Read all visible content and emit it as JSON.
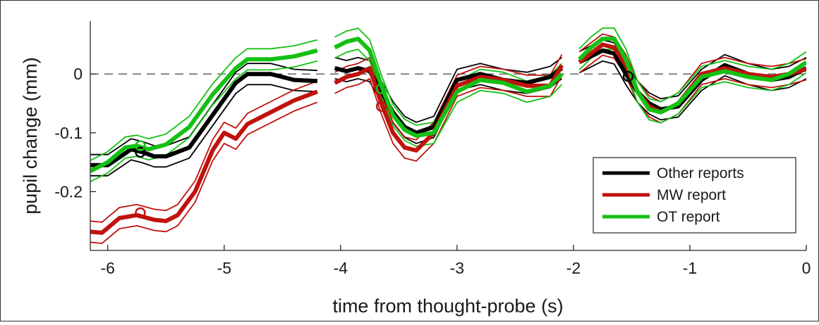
{
  "chart_data": {
    "type": "line",
    "title": "",
    "xlabel": "time from thought-probe (s)",
    "ylabel": "pupil change (mm)",
    "xlim": [
      -6.15,
      0
    ],
    "ylim": [
      -0.3,
      0.09
    ],
    "xticks": [
      -6,
      -5,
      -4,
      -3,
      -2,
      -1,
      0
    ],
    "xtick_labels": [
      "-6",
      "-5",
      "-4",
      "-3",
      "-2",
      "-1",
      "0"
    ],
    "yticks": [
      0,
      -0.1,
      -0.2
    ],
    "ytick_labels": [
      "0",
      "-0.1",
      "-0.2"
    ],
    "grid": false,
    "reference_line": {
      "y": 0,
      "style": "dashed"
    },
    "legend": {
      "placement": "lower-right"
    },
    "series": [
      {
        "name": "Other reports",
        "color": "#000000",
        "segments": [
          {
            "x": [
              -6.15,
              -6.0,
              -5.85,
              -5.8,
              -5.7,
              -5.6,
              -5.5,
              -5.3,
              -5.1,
              -4.9,
              -4.8,
              -4.6,
              -4.4,
              -4.2
            ],
            "y": [
              -0.155,
              -0.155,
              -0.135,
              -0.128,
              -0.133,
              -0.14,
              -0.14,
              -0.125,
              -0.07,
              -0.015,
              0.0,
              0.0,
              -0.01,
              -0.012
            ]
          },
          {
            "x": [
              -4.05,
              -3.95,
              -3.85,
              -3.75,
              -3.65,
              -3.55,
              -3.45,
              -3.35,
              -3.2,
              -3.0,
              -2.8,
              -2.6,
              -2.4,
              -2.2,
              -2.1
            ],
            "y": [
              0.01,
              0.005,
              0.01,
              0.005,
              -0.03,
              -0.065,
              -0.09,
              -0.1,
              -0.09,
              -0.01,
              0.0,
              -0.01,
              -0.015,
              -0.005,
              0.01
            ]
          },
          {
            "x": [
              -1.95,
              -1.85,
              -1.75,
              -1.65,
              -1.55,
              -1.45,
              -1.35,
              -1.25,
              -1.1,
              -0.9,
              -0.7,
              -0.5,
              -0.3,
              -0.15,
              0.0
            ],
            "y": [
              0.02,
              0.03,
              0.04,
              0.035,
              0.0,
              -0.03,
              -0.05,
              -0.06,
              -0.055,
              -0.01,
              0.015,
              0.0,
              -0.01,
              -0.005,
              0.01
            ]
          }
        ],
        "markers": [
          {
            "x": -5.72,
            "y": -0.133
          },
          {
            "x": -1.53,
            "y": -0.004
          }
        ]
      },
      {
        "name": "MW report",
        "color": "#c0120e",
        "segments": [
          {
            "x": [
              -6.15,
              -6.05,
              -5.9,
              -5.75,
              -5.6,
              -5.5,
              -5.4,
              -5.25,
              -5.1,
              -5.0,
              -4.9,
              -4.8,
              -4.6,
              -4.4,
              -4.2
            ],
            "y": [
              -0.268,
              -0.27,
              -0.245,
              -0.24,
              -0.248,
              -0.25,
              -0.24,
              -0.2,
              -0.13,
              -0.1,
              -0.11,
              -0.085,
              -0.065,
              -0.045,
              -0.03
            ]
          },
          {
            "x": [
              -4.05,
              -3.95,
              -3.85,
              -3.75,
              -3.65,
              -3.55,
              -3.45,
              -3.35,
              -3.2,
              -3.0,
              -2.8,
              -2.6,
              -2.4,
              -2.2,
              -2.1
            ],
            "y": [
              -0.015,
              -0.005,
              0.0,
              0.01,
              -0.05,
              -0.1,
              -0.125,
              -0.13,
              -0.1,
              -0.02,
              -0.005,
              -0.01,
              -0.02,
              -0.02,
              0.015
            ]
          },
          {
            "x": [
              -1.95,
              -1.85,
              -1.75,
              -1.65,
              -1.55,
              -1.45,
              -1.35,
              -1.25,
              -1.1,
              -0.9,
              -0.7,
              -0.5,
              -0.3,
              -0.15,
              0.0
            ],
            "y": [
              0.02,
              0.035,
              0.05,
              0.045,
              0.015,
              -0.03,
              -0.055,
              -0.065,
              -0.05,
              0.0,
              0.01,
              0.0,
              -0.005,
              0.0,
              0.008
            ]
          }
        ],
        "markers": [
          {
            "x": -5.72,
            "y": -0.236
          },
          {
            "x": -3.65,
            "y": -0.055
          }
        ]
      },
      {
        "name": "OT report",
        "color": "#14c014",
        "segments": [
          {
            "x": [
              -6.15,
              -6.0,
              -5.85,
              -5.75,
              -5.65,
              -5.5,
              -5.3,
              -5.1,
              -4.9,
              -4.8,
              -4.6,
              -4.4,
              -4.2
            ],
            "y": [
              -0.165,
              -0.15,
              -0.125,
              -0.122,
              -0.128,
              -0.12,
              -0.09,
              -0.035,
              0.01,
              0.025,
              0.025,
              0.03,
              0.04
            ]
          },
          {
            "x": [
              -4.05,
              -3.95,
              -3.85,
              -3.75,
              -3.65,
              -3.55,
              -3.45,
              -3.35,
              -3.2,
              -3.0,
              -2.8,
              -2.6,
              -2.4,
              -2.2,
              -2.1
            ],
            "y": [
              0.045,
              0.055,
              0.06,
              0.04,
              -0.02,
              -0.07,
              -0.095,
              -0.105,
              -0.1,
              -0.03,
              -0.01,
              -0.015,
              -0.03,
              -0.02,
              0.0
            ]
          },
          {
            "x": [
              -1.95,
              -1.85,
              -1.75,
              -1.65,
              -1.55,
              -1.45,
              -1.35,
              -1.25,
              -1.1,
              -0.9,
              -0.7,
              -0.5,
              -0.3,
              -0.15,
              0.0
            ],
            "y": [
              0.025,
              0.045,
              0.06,
              0.06,
              0.025,
              -0.03,
              -0.06,
              -0.065,
              -0.05,
              -0.005,
              0.005,
              -0.005,
              -0.01,
              0.0,
              0.02
            ]
          }
        ],
        "markers": [
          {
            "x": -5.72,
            "y": -0.122
          },
          {
            "x": -3.65,
            "y": -0.025
          }
        ]
      }
    ]
  }
}
